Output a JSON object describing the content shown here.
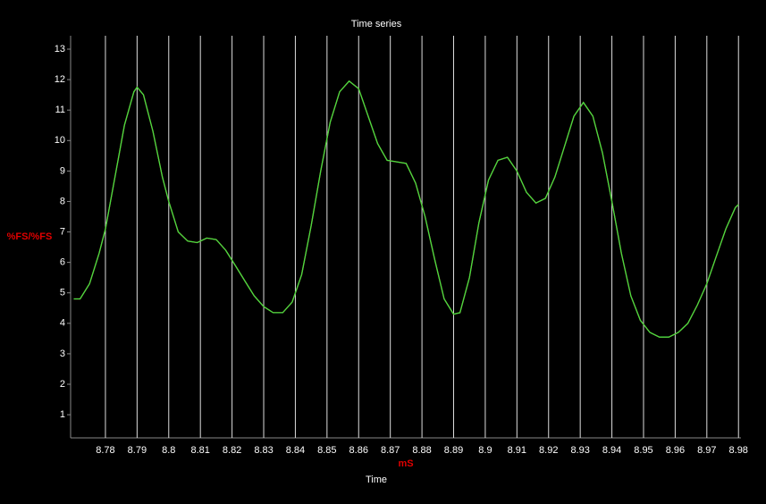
{
  "chart_data": {
    "type": "line",
    "title": "Time series",
    "ylabel": "%FS/%FS",
    "xlabel_unit": "mS",
    "xlabel": "Time",
    "x": [
      8.77,
      8.772,
      8.775,
      8.778,
      8.78,
      8.783,
      8.786,
      8.789,
      8.79,
      8.792,
      8.795,
      8.798,
      8.8,
      8.803,
      8.806,
      8.809,
      8.812,
      8.815,
      8.818,
      8.821,
      8.824,
      8.827,
      8.83,
      8.833,
      8.836,
      8.839,
      8.842,
      8.845,
      8.848,
      8.851,
      8.854,
      8.857,
      8.86,
      8.863,
      8.866,
      8.869,
      8.872,
      8.875,
      8.878,
      8.881,
      8.884,
      8.887,
      8.89,
      8.892,
      8.895,
      8.898,
      8.901,
      8.904,
      8.907,
      8.91,
      8.913,
      8.916,
      8.919,
      8.922,
      8.925,
      8.928,
      8.931,
      8.934,
      8.937,
      8.94,
      8.943,
      8.946,
      8.949,
      8.952,
      8.955,
      8.958,
      8.961,
      8.964,
      8.967,
      8.97,
      8.973,
      8.976,
      8.979,
      8.98
    ],
    "series": [
      {
        "color": "#ff2020",
        "values": [
          4.8,
          4.8,
          5.3,
          6.3,
          7.1,
          8.8,
          10.5,
          11.6,
          11.75,
          11.5,
          10.3,
          8.8,
          8.0,
          7.0,
          6.7,
          6.65,
          6.8,
          6.75,
          6.4,
          5.9,
          5.4,
          4.9,
          4.55,
          4.35,
          4.35,
          4.7,
          5.6,
          7.2,
          9.0,
          10.6,
          11.6,
          11.95,
          11.7,
          10.8,
          9.9,
          9.35,
          9.3,
          9.25,
          8.6,
          7.5,
          6.1,
          4.8,
          4.3,
          4.35,
          5.5,
          7.3,
          8.7,
          9.35,
          9.45,
          9.0,
          8.3,
          7.95,
          8.1,
          8.8,
          9.8,
          10.8,
          11.25,
          10.8,
          9.6,
          8.0,
          6.3,
          4.9,
          4.1,
          3.7,
          3.55,
          3.55,
          3.7,
          4.0,
          4.6,
          5.3,
          6.2,
          7.1,
          7.8,
          7.9
        ]
      },
      {
        "color": "#40e040",
        "values": [
          4.8,
          4.8,
          5.3,
          6.3,
          7.1,
          8.8,
          10.5,
          11.6,
          11.75,
          11.5,
          10.3,
          8.8,
          8.0,
          7.0,
          6.7,
          6.65,
          6.8,
          6.75,
          6.4,
          5.9,
          5.4,
          4.9,
          4.55,
          4.35,
          4.35,
          4.7,
          5.6,
          7.2,
          9.0,
          10.6,
          11.6,
          11.95,
          11.7,
          10.8,
          9.9,
          9.35,
          9.3,
          9.25,
          8.6,
          7.5,
          6.1,
          4.8,
          4.3,
          4.35,
          5.5,
          7.3,
          8.7,
          9.35,
          9.45,
          9.0,
          8.3,
          7.95,
          8.1,
          8.8,
          9.8,
          10.8,
          11.25,
          10.8,
          9.6,
          8.0,
          6.3,
          4.9,
          4.1,
          3.7,
          3.55,
          3.55,
          3.7,
          4.0,
          4.6,
          5.3,
          6.2,
          7.1,
          7.8,
          7.9
        ]
      }
    ],
    "xlim": [
      8.769,
      8.9805
    ],
    "ylim": [
      0.24,
      13.44
    ],
    "xticks": [
      8.78,
      8.79,
      8.8,
      8.81,
      8.82,
      8.83,
      8.84,
      8.85,
      8.86,
      8.87,
      8.88,
      8.89,
      8.9,
      8.91,
      8.92,
      8.93,
      8.94,
      8.95,
      8.96,
      8.97,
      8.98
    ],
    "yticks": [
      1,
      2,
      3,
      4,
      5,
      6,
      7,
      8,
      9,
      10,
      11,
      12,
      13
    ],
    "grid": "x"
  }
}
